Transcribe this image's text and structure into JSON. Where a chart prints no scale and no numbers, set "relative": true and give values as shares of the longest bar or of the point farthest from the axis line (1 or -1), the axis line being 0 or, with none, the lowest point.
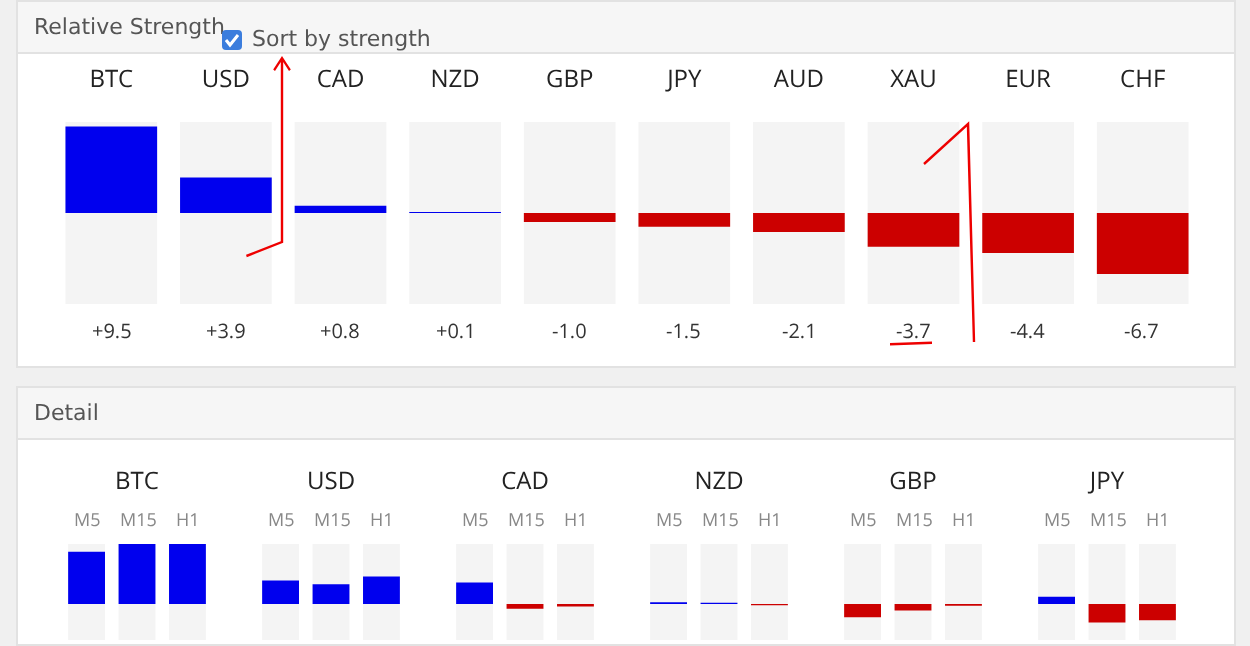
{
  "chart_data": [
    {
      "type": "bar",
      "title": "Relative Strength",
      "annotations": [
        "Sort by strength"
      ],
      "categories": [
        "BTC",
        "USD",
        "CAD",
        "NZD",
        "GBP",
        "JPY",
        "AUD",
        "XAU",
        "EUR",
        "CHF"
      ],
      "values": [
        9.5,
        3.9,
        0.8,
        0.1,
        -1.0,
        -1.5,
        -2.1,
        -3.7,
        -4.4,
        -6.7
      ],
      "value_labels": [
        "+9.5",
        "+3.9",
        "+0.8",
        "+0.1",
        "-1.0",
        "-1.5",
        "-2.1",
        "-3.7",
        "-4.4",
        "-6.7"
      ],
      "colors": [
        "#0000ee",
        "#0000ee",
        "#0000ee",
        "#0000ee",
        "#cc0000",
        "#cc0000",
        "#cc0000",
        "#cc0000",
        "#cc0000",
        "#cc0000"
      ],
      "ylim": [
        -10,
        10
      ],
      "tick_labels": "x",
      "grid": false,
      "legend": false
    },
    {
      "type": "bar",
      "title": "Detail",
      "relative": true,
      "categories": [
        "BTC",
        "USD",
        "CAD",
        "NZD",
        "GBP",
        "JPY"
      ],
      "series": [
        {
          "name": "M5",
          "values": [
            0.87,
            0.39,
            0.36,
            0.03,
            -0.22,
            0.12
          ],
          "colors": [
            "#0000ee",
            "#0000ee",
            "#0000ee",
            "#0000ee",
            "#cc0000",
            "#0000ee"
          ]
        },
        {
          "name": "M15",
          "values": [
            1.0,
            0.33,
            -0.08,
            0.02,
            -0.11,
            -0.31
          ],
          "colors": [
            "#0000ee",
            "#0000ee",
            "#cc0000",
            "#0000ee",
            "#cc0000",
            "#cc0000"
          ]
        },
        {
          "name": "H1",
          "values": [
            1.0,
            0.46,
            -0.04,
            -0.02,
            -0.03,
            -0.27
          ],
          "colors": [
            "#0000ee",
            "#0000ee",
            "#cc0000",
            "#cc0000",
            "#cc0000",
            "#cc0000"
          ]
        }
      ],
      "tick_labels": "x",
      "grid": false,
      "legend": false
    }
  ]
}
